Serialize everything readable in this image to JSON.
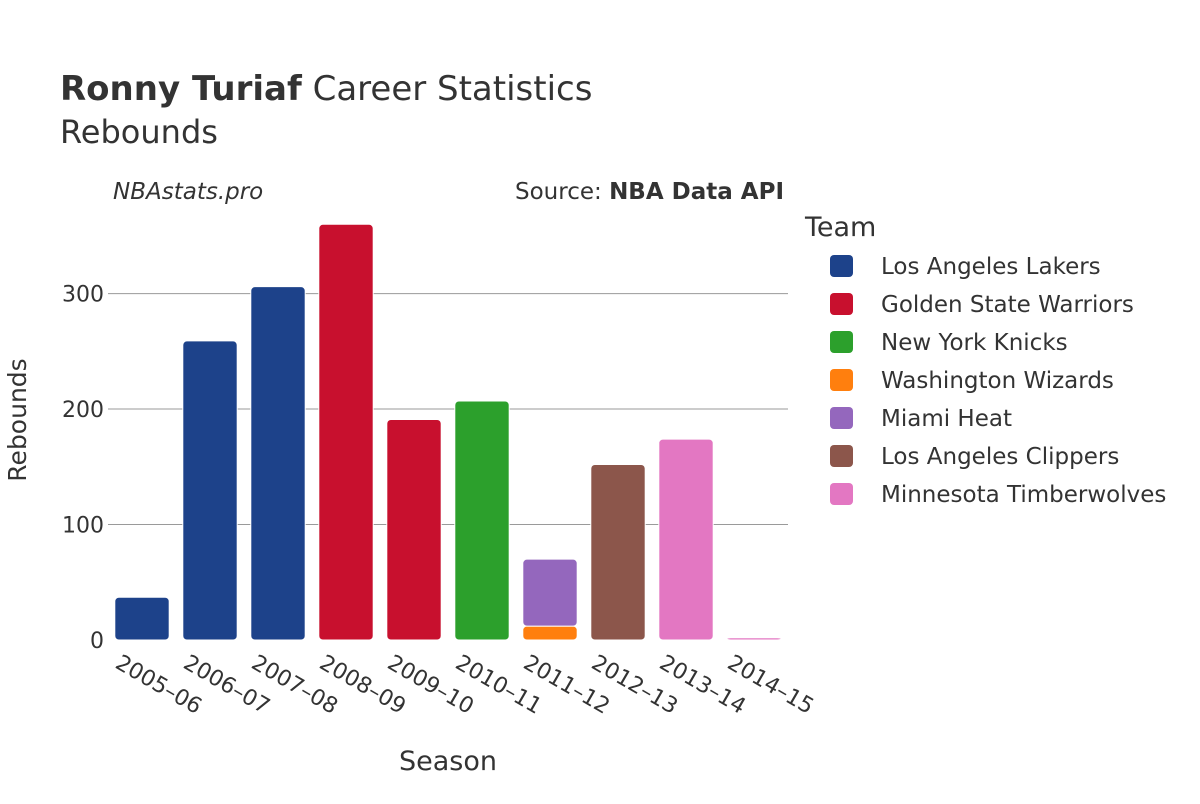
{
  "title": {
    "player": "Ronny Turiaf",
    "rest": " Career Statistics",
    "subtitle": "Rebounds"
  },
  "watermark": "NBAstats.pro",
  "source": {
    "prefix": "Source: ",
    "name": "NBA Data API"
  },
  "colors": {
    "text": "#333333",
    "grid": "#9a9a9a",
    "Los Angeles Lakers": "#1d428a",
    "Golden State Warriors": "#c8102e",
    "New York Knicks": "#2ca02c",
    "Washington Wizards": "#ff7f0e",
    "Miami Heat": "#9467bd",
    "Los Angeles Clippers": "#8c564b",
    "Minnesota Timberwolves": "#e377c2"
  },
  "chart_data": {
    "type": "bar",
    "stacked": true,
    "xlabel": "Season",
    "ylabel": "Rebounds",
    "ylim": [
      0,
      362
    ],
    "yticks": [
      0,
      100,
      200,
      300
    ],
    "grid": true,
    "legend": {
      "title": "Team",
      "placement": "right"
    },
    "categories": [
      "2005–06",
      "2006–07",
      "2007–08",
      "2008–09",
      "2009–10",
      "2010–11",
      "2011–12",
      "2012–13",
      "2013–14",
      "2014–15"
    ],
    "series": [
      {
        "name": "Los Angeles Lakers",
        "values": [
          37,
          259,
          306,
          0,
          0,
          0,
          0,
          0,
          0,
          0
        ]
      },
      {
        "name": "Golden State Warriors",
        "values": [
          0,
          0,
          0,
          360,
          191,
          0,
          0,
          0,
          0,
          0
        ]
      },
      {
        "name": "New York Knicks",
        "values": [
          0,
          0,
          0,
          0,
          0,
          207,
          0,
          0,
          0,
          0
        ]
      },
      {
        "name": "Washington Wizards",
        "values": [
          0,
          0,
          0,
          0,
          0,
          0,
          12,
          0,
          0,
          0
        ]
      },
      {
        "name": "Miami Heat",
        "values": [
          0,
          0,
          0,
          0,
          0,
          0,
          58,
          0,
          0,
          0
        ]
      },
      {
        "name": "Los Angeles Clippers",
        "values": [
          0,
          0,
          0,
          0,
          0,
          0,
          0,
          152,
          0,
          0
        ]
      },
      {
        "name": "Minnesota Timberwolves",
        "values": [
          0,
          0,
          0,
          0,
          0,
          0,
          0,
          0,
          174,
          2
        ]
      }
    ]
  }
}
